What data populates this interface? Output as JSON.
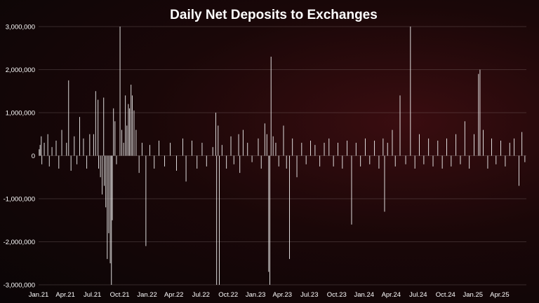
{
  "chart_data": {
    "type": "bar",
    "title": "Daily Net Deposits to Exchanges",
    "xlabel": "",
    "ylabel": "",
    "ylim": [
      -3000000,
      3000000
    ],
    "grid": true,
    "legend": "none",
    "colors": {
      "bars": "#f2f2f2",
      "background": "#0a0506",
      "grid": "#9a8a8a",
      "text": "#ffffff"
    },
    "y_ticks": [
      {
        "value": 3000000,
        "label": "3,000,000"
      },
      {
        "value": 2000000,
        "label": "2,000,000"
      },
      {
        "value": 1000000,
        "label": "1,000,000"
      },
      {
        "value": 0,
        "label": "0"
      },
      {
        "value": -1000000,
        "label": "-1,000,000"
      },
      {
        "value": -2000000,
        "label": "-2,000,000"
      },
      {
        "value": -3000000,
        "label": "-3,000,000"
      }
    ],
    "x_range": [
      "2021-01-01",
      "2025-06-30"
    ],
    "x_ticks": [
      {
        "date": "2021-01-01",
        "label": "Jan.21"
      },
      {
        "date": "2021-04-01",
        "label": "Apr.21"
      },
      {
        "date": "2021-07-01",
        "label": "Jul.21"
      },
      {
        "date": "2021-10-01",
        "label": "Oct.21"
      },
      {
        "date": "2022-01-01",
        "label": "Jan.22"
      },
      {
        "date": "2022-04-01",
        "label": "Apr.22"
      },
      {
        "date": "2022-07-01",
        "label": "Jul.22"
      },
      {
        "date": "2022-10-01",
        "label": "Oct.22"
      },
      {
        "date": "2023-01-01",
        "label": "Jan.23"
      },
      {
        "date": "2023-04-01",
        "label": "Apr.23"
      },
      {
        "date": "2023-07-01",
        "label": "Jul.23"
      },
      {
        "date": "2023-10-01",
        "label": "Oct.23"
      },
      {
        "date": "2024-01-01",
        "label": "Jan.24"
      },
      {
        "date": "2024-04-01",
        "label": "Apr.24"
      },
      {
        "date": "2024-07-01",
        "label": "Jul.24"
      },
      {
        "date": "2024-10-01",
        "label": "Oct.24"
      },
      {
        "date": "2025-01-01",
        "label": "Jan.25"
      },
      {
        "date": "2025-04-01",
        "label": "Apr.25"
      }
    ],
    "points": [
      {
        "date": "2021-01-03",
        "value": 150000
      },
      {
        "date": "2021-01-06",
        "value": 250000
      },
      {
        "date": "2021-01-10",
        "value": 450000
      },
      {
        "date": "2021-01-12",
        "value": -200000
      },
      {
        "date": "2021-01-20",
        "value": 300000
      },
      {
        "date": "2021-02-01",
        "value": 500000
      },
      {
        "date": "2021-02-06",
        "value": -250000
      },
      {
        "date": "2021-02-15",
        "value": 200000
      },
      {
        "date": "2021-03-01",
        "value": 350000
      },
      {
        "date": "2021-03-10",
        "value": -300000
      },
      {
        "date": "2021-03-20",
        "value": 600000
      },
      {
        "date": "2021-04-05",
        "value": 300000
      },
      {
        "date": "2021-04-12",
        "value": 1750000
      },
      {
        "date": "2021-04-20",
        "value": -350000
      },
      {
        "date": "2021-05-01",
        "value": 450000
      },
      {
        "date": "2021-05-10",
        "value": -200000
      },
      {
        "date": "2021-05-19",
        "value": 900000
      },
      {
        "date": "2021-06-01",
        "value": 400000
      },
      {
        "date": "2021-06-12",
        "value": -300000
      },
      {
        "date": "2021-06-22",
        "value": 500000
      },
      {
        "date": "2021-07-05",
        "value": 500000
      },
      {
        "date": "2021-07-12",
        "value": 1500000
      },
      {
        "date": "2021-07-20",
        "value": 1300000
      },
      {
        "date": "2021-07-22",
        "value": -300000
      },
      {
        "date": "2021-07-28",
        "value": -500000
      },
      {
        "date": "2021-08-03",
        "value": -900000
      },
      {
        "date": "2021-08-08",
        "value": 1350000
      },
      {
        "date": "2021-08-10",
        "value": -700000
      },
      {
        "date": "2021-08-15",
        "value": -1200000
      },
      {
        "date": "2021-08-20",
        "value": -2400000
      },
      {
        "date": "2021-08-25",
        "value": -1800000
      },
      {
        "date": "2021-08-30",
        "value": -2500000
      },
      {
        "date": "2021-09-03",
        "value": -3000000
      },
      {
        "date": "2021-09-06",
        "value": -1500000
      },
      {
        "date": "2021-09-10",
        "value": 1100000
      },
      {
        "date": "2021-09-15",
        "value": 800000
      },
      {
        "date": "2021-09-20",
        "value": -200000
      },
      {
        "date": "2021-10-02",
        "value": 3000000
      },
      {
        "date": "2021-10-08",
        "value": 600000
      },
      {
        "date": "2021-10-14",
        "value": 300000
      },
      {
        "date": "2021-10-20",
        "value": 1400000
      },
      {
        "date": "2021-10-25",
        "value": 700000
      },
      {
        "date": "2021-10-30",
        "value": 1200000
      },
      {
        "date": "2021-11-03",
        "value": 1100000
      },
      {
        "date": "2021-11-08",
        "value": 1650000
      },
      {
        "date": "2021-11-12",
        "value": 1400000
      },
      {
        "date": "2021-11-18",
        "value": 1050000
      },
      {
        "date": "2021-11-25",
        "value": 600000
      },
      {
        "date": "2021-12-05",
        "value": -400000
      },
      {
        "date": "2021-12-15",
        "value": 300000
      },
      {
        "date": "2021-12-28",
        "value": -2100000
      },
      {
        "date": "2022-01-10",
        "value": 250000
      },
      {
        "date": "2022-01-25",
        "value": -300000
      },
      {
        "date": "2022-02-10",
        "value": 350000
      },
      {
        "date": "2022-03-01",
        "value": -250000
      },
      {
        "date": "2022-03-20",
        "value": 300000
      },
      {
        "date": "2022-04-10",
        "value": -350000
      },
      {
        "date": "2022-05-01",
        "value": 400000
      },
      {
        "date": "2022-05-12",
        "value": -600000
      },
      {
        "date": "2022-06-01",
        "value": 350000
      },
      {
        "date": "2022-06-18",
        "value": -300000
      },
      {
        "date": "2022-07-05",
        "value": 300000
      },
      {
        "date": "2022-07-20",
        "value": -250000
      },
      {
        "date": "2022-08-10",
        "value": 200000
      },
      {
        "date": "2022-08-20",
        "value": 1000000
      },
      {
        "date": "2022-08-23",
        "value": -3000000
      },
      {
        "date": "2022-08-28",
        "value": 700000
      },
      {
        "date": "2022-09-01",
        "value": -3000000
      },
      {
        "date": "2022-09-10",
        "value": 250000
      },
      {
        "date": "2022-09-25",
        "value": -300000
      },
      {
        "date": "2022-10-10",
        "value": 450000
      },
      {
        "date": "2022-10-20",
        "value": -200000
      },
      {
        "date": "2022-11-05",
        "value": 500000
      },
      {
        "date": "2022-11-09",
        "value": -400000
      },
      {
        "date": "2022-11-20",
        "value": 600000
      },
      {
        "date": "2022-12-05",
        "value": 300000
      },
      {
        "date": "2022-12-20",
        "value": -150000
      },
      {
        "date": "2023-01-10",
        "value": 400000
      },
      {
        "date": "2023-01-20",
        "value": -300000
      },
      {
        "date": "2023-02-01",
        "value": 750000
      },
      {
        "date": "2023-02-08",
        "value": 500000
      },
      {
        "date": "2023-02-14",
        "value": -2700000
      },
      {
        "date": "2023-02-18",
        "value": -3000000
      },
      {
        "date": "2023-02-22",
        "value": 2300000
      },
      {
        "date": "2023-03-01",
        "value": 450000
      },
      {
        "date": "2023-03-10",
        "value": 300000
      },
      {
        "date": "2023-03-20",
        "value": -250000
      },
      {
        "date": "2023-04-05",
        "value": 700000
      },
      {
        "date": "2023-04-15",
        "value": -300000
      },
      {
        "date": "2023-04-25",
        "value": -2400000
      },
      {
        "date": "2023-05-05",
        "value": 400000
      },
      {
        "date": "2023-05-20",
        "value": -500000
      },
      {
        "date": "2023-06-05",
        "value": 300000
      },
      {
        "date": "2023-06-20",
        "value": -200000
      },
      {
        "date": "2023-07-05",
        "value": 350000
      },
      {
        "date": "2023-07-20",
        "value": 250000
      },
      {
        "date": "2023-08-05",
        "value": -250000
      },
      {
        "date": "2023-08-20",
        "value": 300000
      },
      {
        "date": "2023-09-05",
        "value": 400000
      },
      {
        "date": "2023-09-20",
        "value": -250000
      },
      {
        "date": "2023-10-05",
        "value": 300000
      },
      {
        "date": "2023-10-20",
        "value": -300000
      },
      {
        "date": "2023-11-05",
        "value": 350000
      },
      {
        "date": "2023-11-20",
        "value": -1600000
      },
      {
        "date": "2023-12-05",
        "value": 300000
      },
      {
        "date": "2023-12-20",
        "value": -250000
      },
      {
        "date": "2024-01-05",
        "value": 400000
      },
      {
        "date": "2024-01-20",
        "value": -200000
      },
      {
        "date": "2024-02-05",
        "value": 350000
      },
      {
        "date": "2024-02-20",
        "value": -300000
      },
      {
        "date": "2024-03-05",
        "value": 400000
      },
      {
        "date": "2024-03-10",
        "value": -1300000
      },
      {
        "date": "2024-03-20",
        "value": 300000
      },
      {
        "date": "2024-04-05",
        "value": 600000
      },
      {
        "date": "2024-04-15",
        "value": -250000
      },
      {
        "date": "2024-05-01",
        "value": 1400000
      },
      {
        "date": "2024-05-20",
        "value": -200000
      },
      {
        "date": "2024-06-05",
        "value": 3000000
      },
      {
        "date": "2024-06-20",
        "value": -300000
      },
      {
        "date": "2024-07-05",
        "value": 500000
      },
      {
        "date": "2024-07-20",
        "value": -200000
      },
      {
        "date": "2024-08-05",
        "value": 400000
      },
      {
        "date": "2024-08-20",
        "value": -250000
      },
      {
        "date": "2024-09-05",
        "value": 350000
      },
      {
        "date": "2024-09-20",
        "value": -300000
      },
      {
        "date": "2024-10-05",
        "value": 400000
      },
      {
        "date": "2024-10-20",
        "value": -250000
      },
      {
        "date": "2024-11-05",
        "value": 500000
      },
      {
        "date": "2024-11-20",
        "value": -200000
      },
      {
        "date": "2024-12-05",
        "value": 800000
      },
      {
        "date": "2024-12-20",
        "value": -300000
      },
      {
        "date": "2025-01-05",
        "value": 500000
      },
      {
        "date": "2025-01-20",
        "value": 1900000
      },
      {
        "date": "2025-01-25",
        "value": 2000000
      },
      {
        "date": "2025-02-05",
        "value": 600000
      },
      {
        "date": "2025-02-20",
        "value": -300000
      },
      {
        "date": "2025-03-05",
        "value": 400000
      },
      {
        "date": "2025-03-20",
        "value": -200000
      },
      {
        "date": "2025-04-05",
        "value": 350000
      },
      {
        "date": "2025-04-20",
        "value": -250000
      },
      {
        "date": "2025-05-05",
        "value": 300000
      },
      {
        "date": "2025-05-20",
        "value": 400000
      },
      {
        "date": "2025-06-05",
        "value": -700000
      },
      {
        "date": "2025-06-15",
        "value": 550000
      },
      {
        "date": "2025-06-25",
        "value": -150000
      }
    ]
  }
}
